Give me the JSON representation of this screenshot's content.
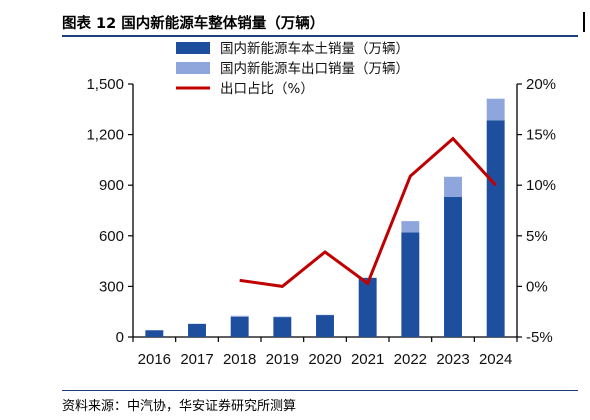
{
  "header": {
    "title": "图表 12  国内新能源车整体销量（万辆）"
  },
  "footer": {
    "source": "资料来源：中汽协，华安证券研究所测算"
  },
  "chart_data": {
    "type": "bar",
    "categories": [
      "2016",
      "2017",
      "2018",
      "2019",
      "2020",
      "2021",
      "2022",
      "2023",
      "2024"
    ],
    "series": [
      {
        "name": "国内新能源车本土销量（万辆）",
        "kind": "stacked-bar",
        "axis": "left",
        "color": "#1d4f9e",
        "values": [
          40,
          78,
          120,
          118,
          130,
          350,
          620,
          830,
          1285
        ]
      },
      {
        "name": "国内新能源车出口销量（万辆）",
        "kind": "stacked-bar",
        "axis": "left",
        "color": "#8ea6dc",
        "values": [
          0,
          0,
          6,
          3,
          2,
          2,
          67,
          120,
          128
        ]
      },
      {
        "name": "出口占比（%）",
        "kind": "line",
        "axis": "right",
        "color": "#c00000",
        "x": [
          "2018",
          "2019",
          "2020",
          "2021",
          "2022",
          "2023",
          "2024"
        ],
        "values": [
          0.6,
          0.0,
          3.4,
          0.3,
          10.9,
          14.6,
          10.0
        ]
      }
    ],
    "left_axis": {
      "ylim": [
        0,
        1500
      ],
      "ticks": [
        0,
        300,
        600,
        900,
        1200,
        1500
      ],
      "tick_labels": [
        "0",
        "300",
        "600",
        "900",
        "1,200",
        "1,500"
      ]
    },
    "right_axis": {
      "ylim": [
        -5,
        20
      ],
      "ticks": [
        -5,
        0,
        5,
        10,
        15,
        20
      ],
      "tick_labels": [
        "-5%",
        "0%",
        "5%",
        "10%",
        "15%",
        "20%"
      ]
    },
    "grid": false,
    "legend_position": "top-center"
  }
}
